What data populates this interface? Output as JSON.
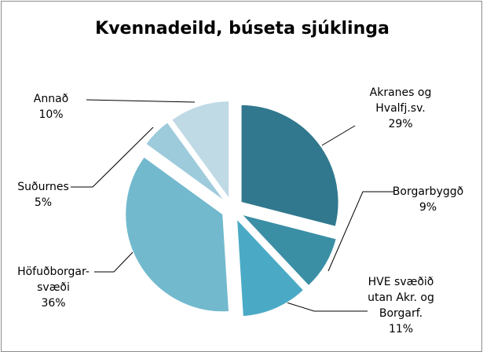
{
  "chart_data": {
    "type": "pie",
    "title": "Kvennadeild, búseta sjúklinga",
    "categories": [
      "Akranes og Hvalfj.sv.",
      "Borgarbyggð",
      "HVE svæðið utan Akr. og Borgarf.",
      "Höfuðborgar-svæði",
      "Suðurnes",
      "Annað"
    ],
    "values": [
      29,
      9,
      11,
      36,
      5,
      10
    ],
    "value_labels": [
      "29%",
      "9%",
      "11%",
      "36%",
      "5%",
      "10%"
    ],
    "colors": [
      "#31788e",
      "#3a8fa5",
      "#4aaac6",
      "#72b9ce",
      "#9ecbdb",
      "#bfdae5"
    ]
  }
}
